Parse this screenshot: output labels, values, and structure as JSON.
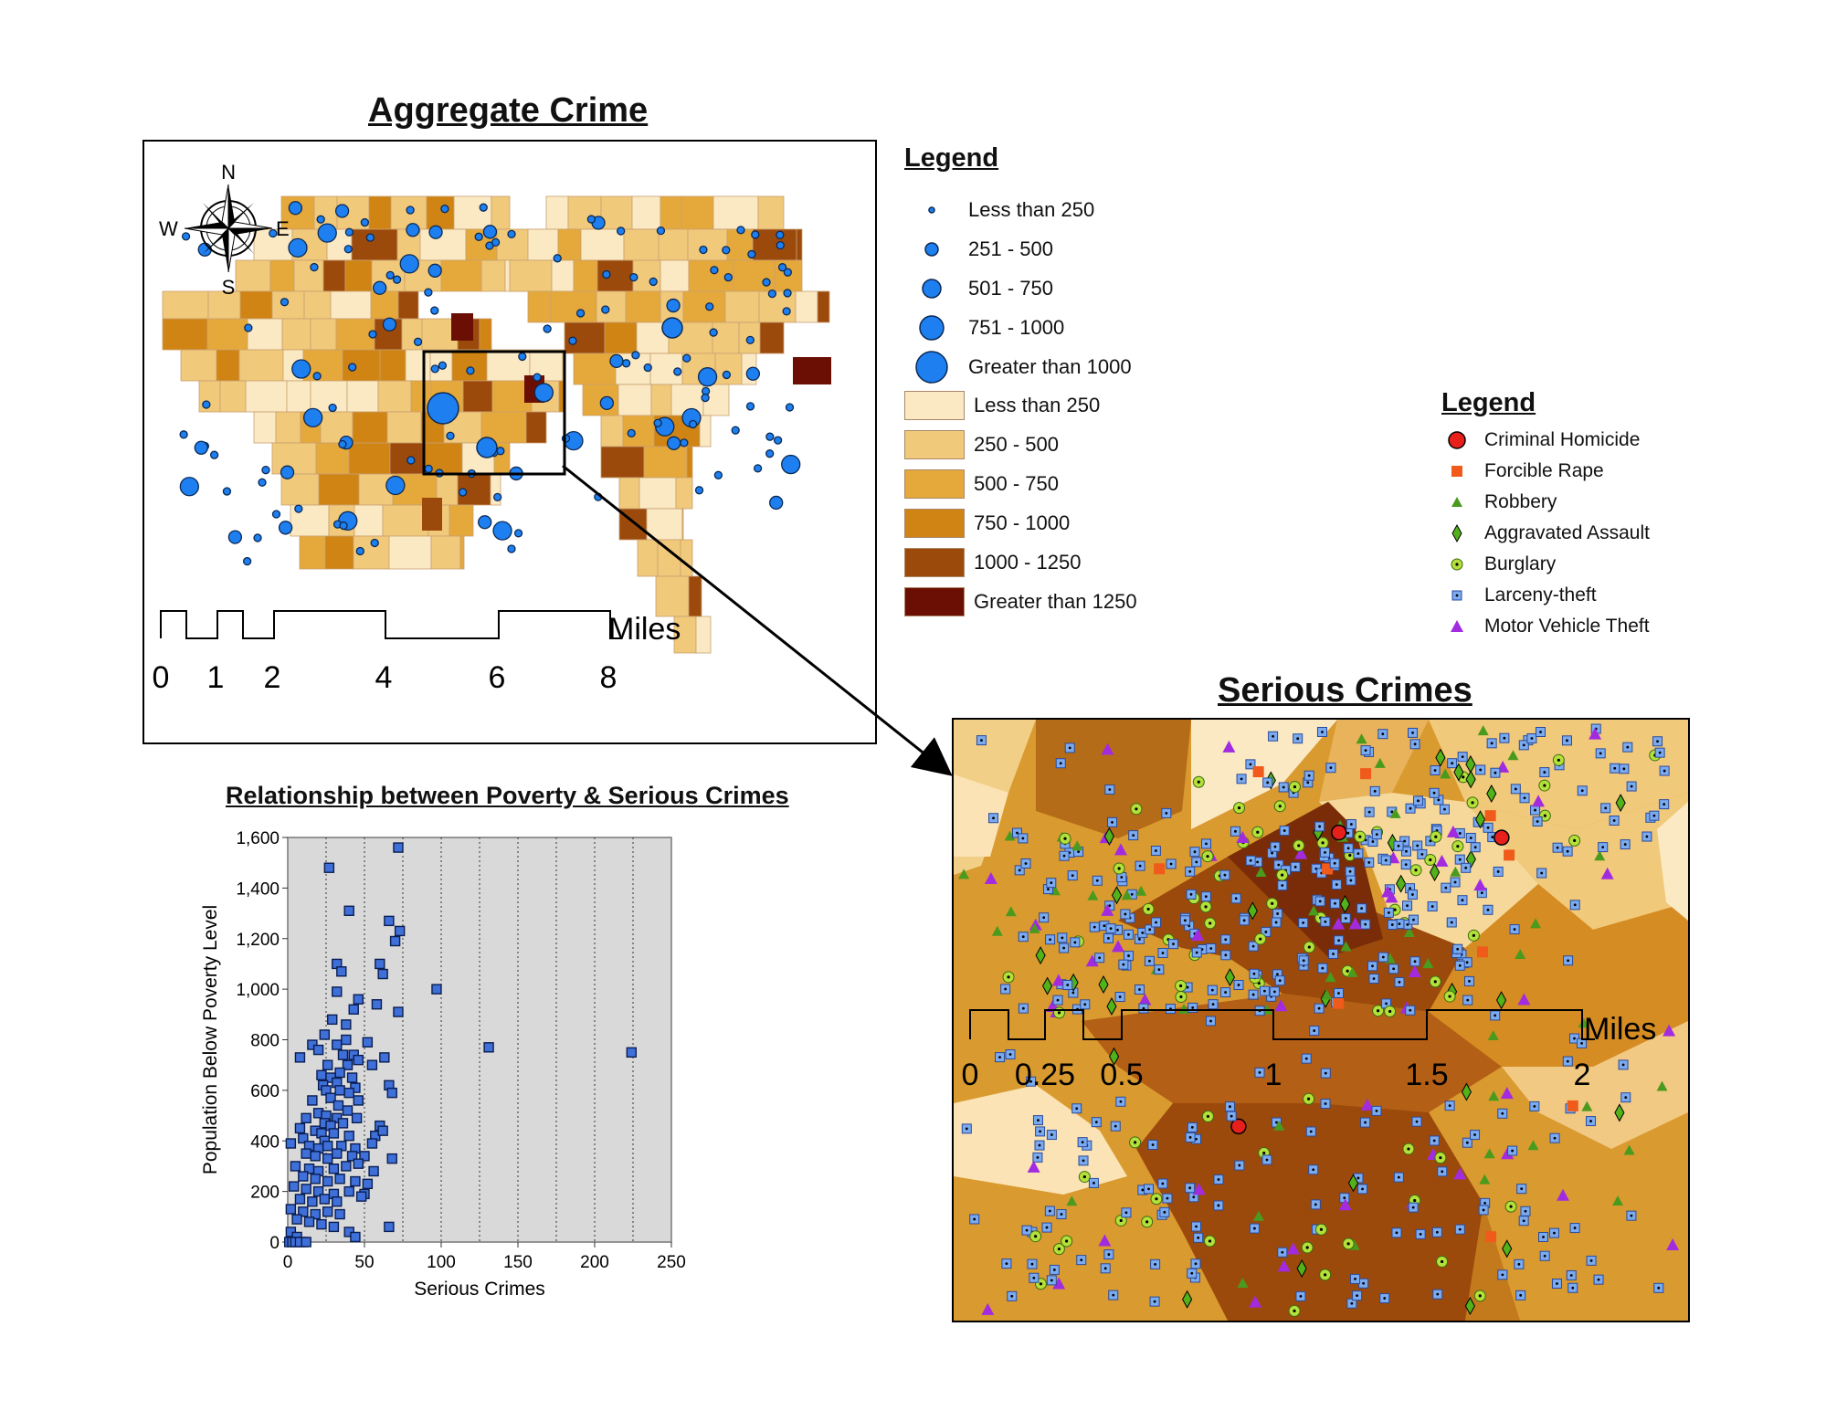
{
  "aggregate_map": {
    "title": "Aggregate Crime",
    "compass": {
      "n": "N",
      "s": "S",
      "e": "E",
      "w": "W"
    },
    "scale_unit": "Miles",
    "scale_ticks": [
      "0",
      "1",
      "2",
      "4",
      "6",
      "8"
    ]
  },
  "legend_aggregate": {
    "title": "Legend",
    "circles": [
      "Less than 250",
      "251 - 500",
      "501 - 750",
      "751 - 1000",
      "Greater than 1000"
    ],
    "fills": [
      "Less than 250",
      "250 - 500",
      "500 - 750",
      "750 - 1000",
      "1000 - 1250",
      "Greater than 1250"
    ],
    "fill_colors": [
      "#fbe9c4",
      "#f1c97a",
      "#e5a83a",
      "#cf8414",
      "#9b4a0c",
      "#6b0f05"
    ],
    "circle_color": "#1e7ff0"
  },
  "legend_serious": {
    "title": "Legend",
    "items": [
      {
        "label": "Criminal Homicide",
        "icon": "red-circle-icon",
        "color": "#e8201c"
      },
      {
        "label": "Forcible Rape",
        "icon": "orange-square-icon",
        "color": "#f05a1a"
      },
      {
        "label": "Robbery",
        "icon": "green-triangle-icon",
        "color": "#4a9a1e"
      },
      {
        "label": "Aggravated Assault",
        "icon": "green-diamond-icon",
        "color": "#52b21a"
      },
      {
        "label": "Burglary",
        "icon": "lime-circle-icon",
        "color": "#b4e03a"
      },
      {
        "label": "Larceny-theft",
        "icon": "blue-square-icon",
        "color": "#7aaaf0"
      },
      {
        "label": "Motor Vehicle Theft",
        "icon": "purple-triangle-icon",
        "color": "#a22be0"
      }
    ]
  },
  "serious_map": {
    "title": "Serious Crimes",
    "scale_unit": "Miles",
    "scale_ticks": [
      "0",
      "0.25",
      "0.5",
      "1",
      "1.5",
      "2"
    ]
  },
  "chart_data": {
    "type": "scatter",
    "title": "Relationship between Poverty & Serious Crimes",
    "xlabel": "Serious Crimes",
    "ylabel": "Population Below Poverty Level",
    "xlim": [
      0,
      250
    ],
    "ylim": [
      0,
      1600
    ],
    "x_ticks": [
      "0",
      "50",
      "100",
      "150",
      "200",
      "250"
    ],
    "y_ticks": [
      "0",
      "200",
      "400",
      "600",
      "800",
      "1,000",
      "1,200",
      "1,400",
      "1,600"
    ],
    "marker_color": "#3f6fd9",
    "background": "#d9d9d9",
    "grid": "vertical dotted",
    "points": [
      [
        27,
        1480
      ],
      [
        72,
        1560
      ],
      [
        40,
        1310
      ],
      [
        66,
        1270
      ],
      [
        73,
        1230
      ],
      [
        70,
        1190
      ],
      [
        32,
        1100
      ],
      [
        60,
        1100
      ],
      [
        97,
        1000
      ],
      [
        35,
        1070
      ],
      [
        62,
        1060
      ],
      [
        32,
        990
      ],
      [
        46,
        960
      ],
      [
        58,
        940
      ],
      [
        43,
        920
      ],
      [
        72,
        910
      ],
      [
        29,
        880
      ],
      [
        38,
        860
      ],
      [
        24,
        820
      ],
      [
        38,
        800
      ],
      [
        16,
        780
      ],
      [
        32,
        780
      ],
      [
        52,
        790
      ],
      [
        20,
        760
      ],
      [
        8,
        730
      ],
      [
        36,
        740
      ],
      [
        43,
        740
      ],
      [
        63,
        730
      ],
      [
        131,
        770
      ],
      [
        224,
        750
      ],
      [
        46,
        720
      ],
      [
        26,
        700
      ],
      [
        39,
        700
      ],
      [
        55,
        700
      ],
      [
        34,
        670
      ],
      [
        22,
        660
      ],
      [
        28,
        650
      ],
      [
        42,
        650
      ],
      [
        23,
        620
      ],
      [
        32,
        630
      ],
      [
        44,
        610
      ],
      [
        66,
        620
      ],
      [
        25,
        600
      ],
      [
        34,
        600
      ],
      [
        40,
        590
      ],
      [
        68,
        590
      ],
      [
        28,
        570
      ],
      [
        46,
        560
      ],
      [
        16,
        560
      ],
      [
        33,
        540
      ],
      [
        39,
        520
      ],
      [
        20,
        510
      ],
      [
        12,
        490
      ],
      [
        25,
        500
      ],
      [
        32,
        490
      ],
      [
        45,
        490
      ],
      [
        24,
        470
      ],
      [
        28,
        460
      ],
      [
        36,
        470
      ],
      [
        60,
        460
      ],
      [
        8,
        450
      ],
      [
        18,
        440
      ],
      [
        22,
        430
      ],
      [
        30,
        430
      ],
      [
        40,
        420
      ],
      [
        57,
        420
      ],
      [
        62,
        440
      ],
      [
        2,
        390
      ],
      [
        10,
        410
      ],
      [
        24,
        400
      ],
      [
        14,
        380
      ],
      [
        20,
        370
      ],
      [
        26,
        380
      ],
      [
        35,
        380
      ],
      [
        44,
        370
      ],
      [
        55,
        390
      ],
      [
        12,
        350
      ],
      [
        18,
        340
      ],
      [
        26,
        330
      ],
      [
        32,
        350
      ],
      [
        42,
        340
      ],
      [
        50,
        340
      ],
      [
        68,
        330
      ],
      [
        5,
        300
      ],
      [
        14,
        290
      ],
      [
        20,
        280
      ],
      [
        30,
        290
      ],
      [
        38,
        300
      ],
      [
        46,
        310
      ],
      [
        56,
        280
      ],
      [
        10,
        260
      ],
      [
        18,
        250
      ],
      [
        26,
        240
      ],
      [
        34,
        250
      ],
      [
        44,
        240
      ],
      [
        52,
        230
      ],
      [
        4,
        220
      ],
      [
        12,
        210
      ],
      [
        20,
        200
      ],
      [
        30,
        190
      ],
      [
        40,
        200
      ],
      [
        50,
        190
      ],
      [
        8,
        170
      ],
      [
        16,
        160
      ],
      [
        24,
        170
      ],
      [
        32,
        160
      ],
      [
        48,
        180
      ],
      [
        2,
        130
      ],
      [
        10,
        120
      ],
      [
        18,
        110
      ],
      [
        26,
        120
      ],
      [
        34,
        110
      ],
      [
        6,
        90
      ],
      [
        14,
        80
      ],
      [
        22,
        70
      ],
      [
        30,
        60
      ],
      [
        66,
        60
      ],
      [
        2,
        40
      ],
      [
        6,
        20
      ],
      [
        10,
        0
      ],
      [
        1,
        0
      ],
      [
        3,
        0
      ],
      [
        5,
        0
      ],
      [
        8,
        0
      ],
      [
        12,
        0
      ],
      [
        40,
        40
      ],
      [
        44,
        20
      ]
    ]
  }
}
